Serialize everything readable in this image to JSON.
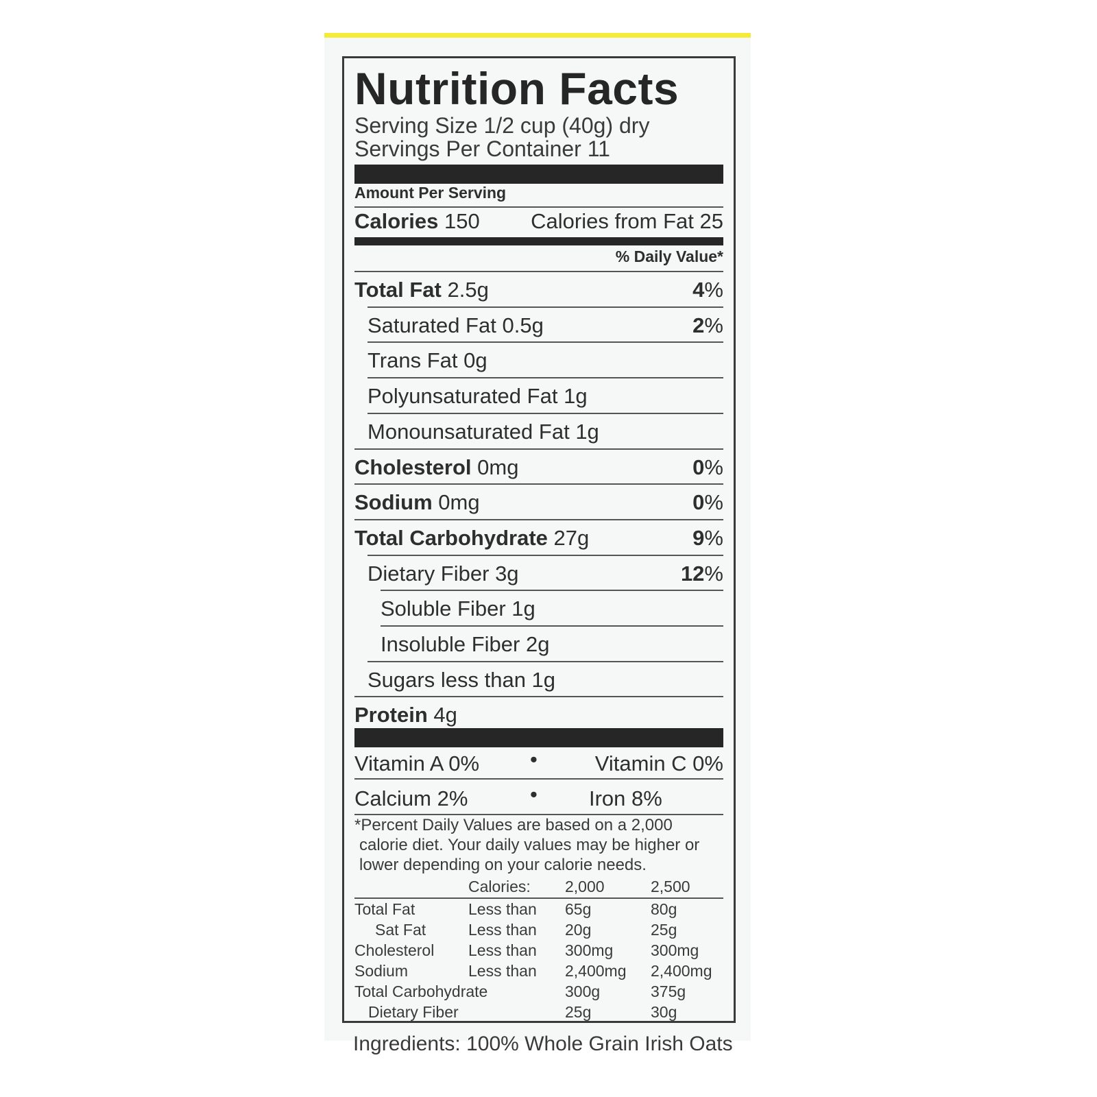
{
  "label": {
    "title": "Nutrition Facts",
    "serving_size": "Serving Size 1/2 cup (40g) dry",
    "servings_per_container": "Servings Per Container 11",
    "amount_per_serving": "Amount Per Serving",
    "calories_label": "Calories",
    "calories_value": "150",
    "calories_from_fat": "Calories from Fat 25",
    "daily_value_header": "% Daily Value*",
    "nutrients": [
      {
        "name": "Total Fat",
        "amount": "2.5g",
        "dv_num": "4",
        "dv_pct": "%"
      },
      {
        "name": "Saturated Fat",
        "amount": "0.5g",
        "dv_num": "2",
        "dv_pct": "%"
      },
      {
        "name": "Trans Fat",
        "amount": "0g"
      },
      {
        "name": "Polyunsaturated Fat",
        "amount": "1g"
      },
      {
        "name": "Monounsaturated Fat",
        "amount": "1g"
      },
      {
        "name": "Cholesterol",
        "amount": "0mg",
        "dv_num": "0",
        "dv_pct": "%"
      },
      {
        "name": "Sodium",
        "amount": "0mg",
        "dv_num": "0",
        "dv_pct": "%"
      },
      {
        "name": "Total Carbohydrate",
        "amount": "27g",
        "dv_num": "9",
        "dv_pct": "%"
      },
      {
        "name": "Dietary Fiber",
        "amount": "3g",
        "dv_num": "12",
        "dv_pct": "%"
      },
      {
        "name": "Soluble Fiber",
        "amount": "1g"
      },
      {
        "name": "Insoluble Fiber",
        "amount": "2g"
      },
      {
        "name": "Sugars",
        "amount": "less than 1g"
      },
      {
        "name": "Protein",
        "amount": "4g"
      }
    ],
    "vitamins": [
      "Vitamin A 0%",
      "Vitamin C 0%",
      "Calcium 2%",
      "Iron 8%"
    ],
    "bullet": "•",
    "footnote": [
      "*Percent Daily Values are based on a 2,000",
      "calorie diet. Your daily values may be higher or",
      "lower depending on your calorie needs."
    ],
    "dv_table": {
      "header": [
        "",
        "Calories:",
        "2,000",
        "2,500"
      ],
      "rows": [
        [
          "Total Fat",
          "Less than",
          "65g",
          "80g"
        ],
        [
          "Sat Fat",
          "Less than",
          "20g",
          "25g"
        ],
        [
          "Cholesterol",
          "Less than",
          "300mg",
          "300mg"
        ],
        [
          "Sodium",
          "Less than",
          "2,400mg",
          "2,400mg"
        ],
        [
          "Total Carbohydrate",
          "",
          "300g",
          "375g"
        ],
        [
          "Dietary Fiber",
          "",
          "25g",
          "30g"
        ]
      ]
    },
    "ingredients": "Ingredients: 100% Whole Grain Irish Oats"
  },
  "colors": {
    "accent_stripe": "#f5ec3a",
    "ink": "#262626",
    "panel": "#f6f8f8"
  }
}
